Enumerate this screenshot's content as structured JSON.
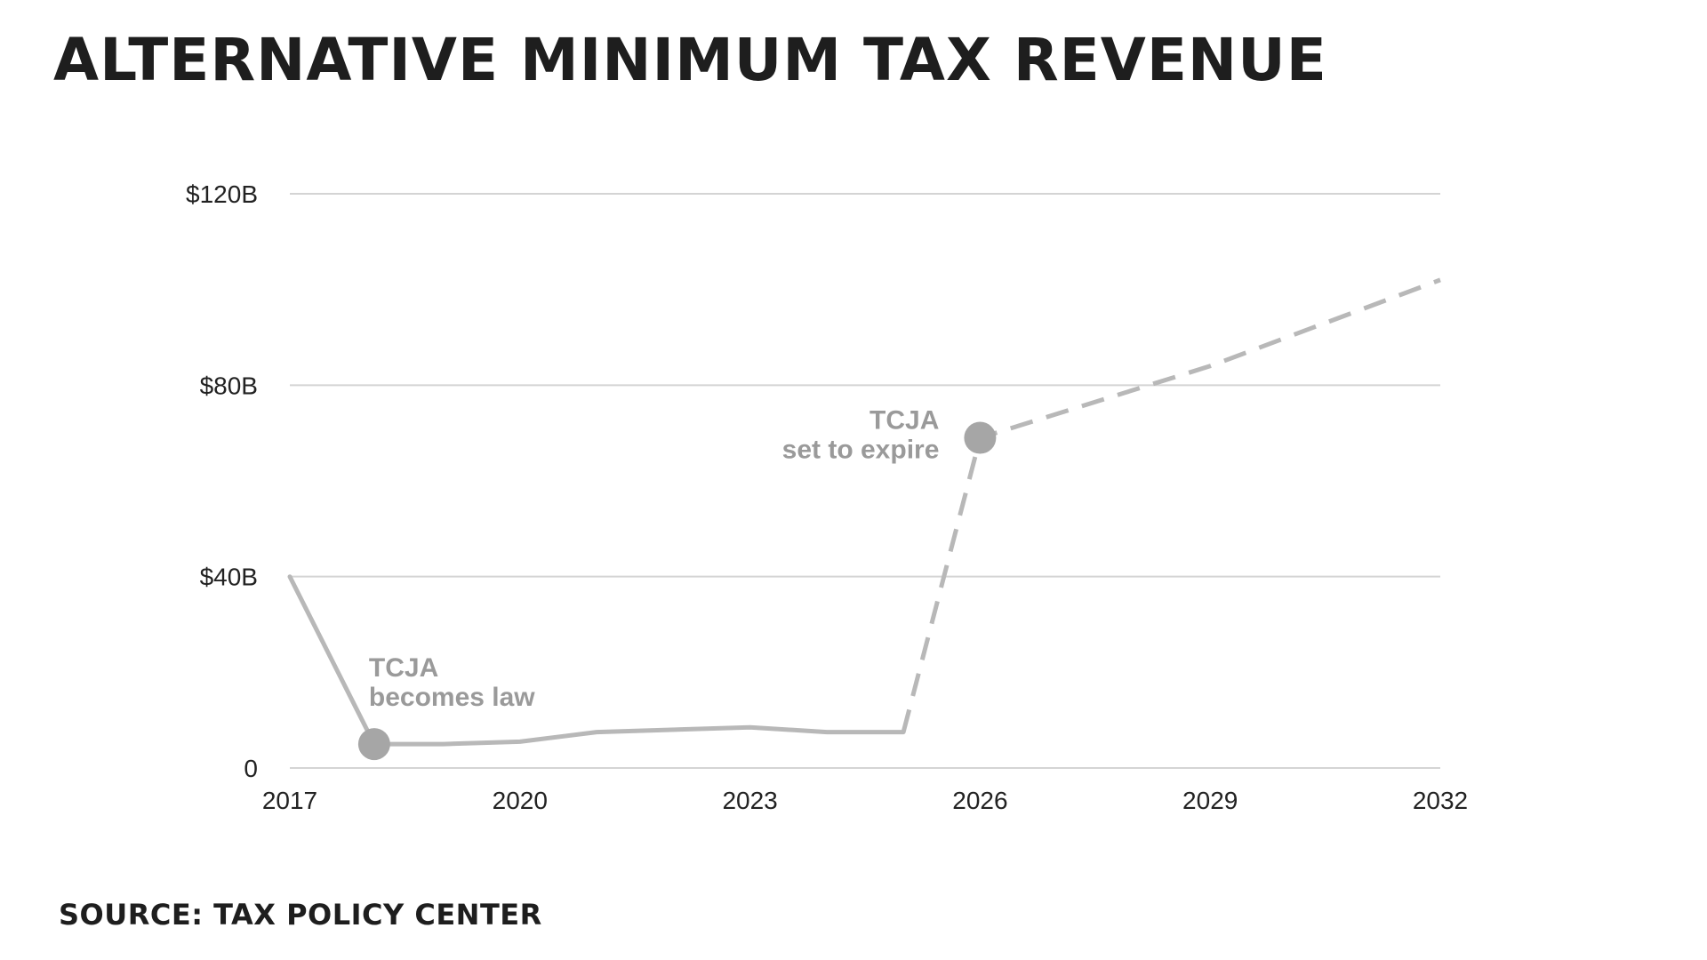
{
  "title": "ALTERNATIVE MINIMUM TAX REVENUE",
  "source": "SOURCE: TAX POLICY CENTER",
  "colors": {
    "line": "#b8b8b8",
    "marker": "#a6a6a6",
    "grid": "#d4d4d4",
    "annotation": "#9a9a9a"
  },
  "chart_data": {
    "type": "line",
    "title": "ALTERNATIVE MINIMUM TAX REVENUE",
    "xlabel": "",
    "ylabel": "",
    "xlim": [
      2017,
      2032
    ],
    "ylim": [
      0,
      120
    ],
    "x_ticks": [
      2017,
      2020,
      2023,
      2026,
      2029,
      2032
    ],
    "x_tick_labels": [
      "2017",
      "2020",
      "2023",
      "2026",
      "2029",
      "2032"
    ],
    "y_ticks": [
      0,
      40,
      80,
      120
    ],
    "y_tick_labels": [
      "0",
      "$40B",
      "$80B",
      "$120B"
    ],
    "grid": true,
    "legend": "none",
    "series": [
      {
        "style": "solid",
        "x": [
          2017,
          2018.1,
          2019,
          2020,
          2021,
          2023,
          2024,
          2025
        ],
        "y": [
          40,
          5,
          5,
          5.5,
          7.5,
          8.5,
          7.5,
          7.5
        ]
      },
      {
        "style": "dashed",
        "x": [
          2025,
          2026,
          2029,
          2032
        ],
        "y": [
          7.5,
          69,
          84,
          102
        ]
      }
    ],
    "markers": [
      {
        "x": 2018.1,
        "y": 5
      },
      {
        "x": 2026,
        "y": 69
      }
    ],
    "annotations": [
      {
        "lines": [
          "TCJA",
          "becomes law"
        ],
        "x": 2018.1,
        "y": 5,
        "align": "left"
      },
      {
        "lines": [
          "TCJA",
          "set to expire"
        ],
        "x": 2026,
        "y": 69,
        "align": "right"
      }
    ]
  }
}
